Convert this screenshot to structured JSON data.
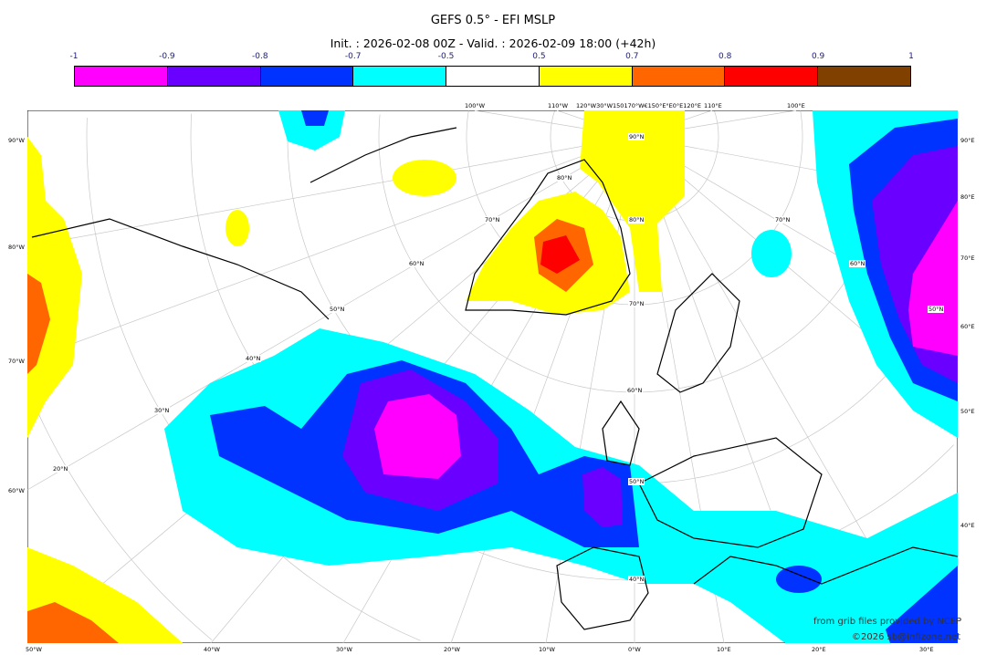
{
  "title": "GEFS 0.5° - EFI MSLP",
  "subtitle": "Init. : 2026-02-08 00Z - Valid. : 2026-02-09 18:00 (+42h)",
  "colorbar": {
    "labels": [
      "-1",
      "-0.9",
      "-0.8",
      "-0.7",
      "-0.5",
      "0.5",
      "0.7",
      "0.8",
      "0.9",
      "1"
    ],
    "colors": [
      "#ff00ff",
      "#6a00ff",
      "#0033ff",
      "#00ffff",
      "#ffffff",
      "#ffff00",
      "#ff6600",
      "#ff0000",
      "#804000"
    ]
  },
  "axes": {
    "left": [
      "90°W",
      "80°W",
      "70°W",
      "60°W"
    ],
    "bottom": [
      "50°W",
      "40°W",
      "30°W",
      "20°W",
      "10°W",
      "0°W",
      "10°E",
      "20°E",
      "30°E"
    ],
    "right": [
      "90°E",
      "80°E",
      "70°E",
      "60°E",
      "50°E",
      "40°E"
    ],
    "top": [
      "100°W",
      "110°W",
      "120°W30°W150170°W€150°E°E0°E120°E",
      "110°E",
      "100°E"
    ],
    "lat_labels": [
      "90°N",
      "80°N",
      "70°N",
      "60°N",
      "50°N",
      "40°N",
      "80°N",
      "70°N",
      "60°N",
      "50°N",
      "40°N",
      "30°N",
      "20°N",
      "70°N",
      "60°N",
      "50°N"
    ]
  },
  "credits": {
    "source": "from grib files provided by NCEP",
    "copyright": "©2026 sb@infizone.net"
  }
}
